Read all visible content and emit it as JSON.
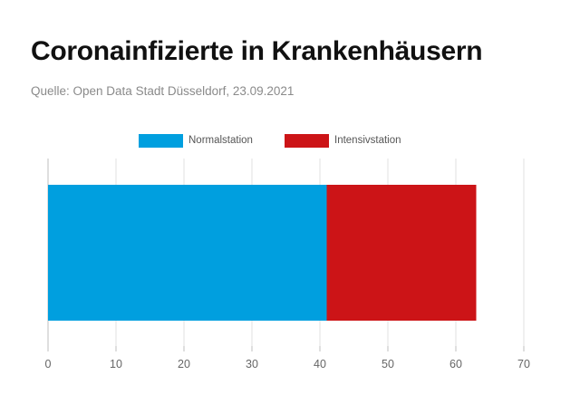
{
  "header": {
    "title": "Coronainfizierte in Krankenhäusern",
    "source": "Quelle: Open Data Stadt Düsseldorf, 23.09.2021"
  },
  "colors": {
    "normalstation": "#009fdf",
    "intensivstation": "#cc1417",
    "grid": "#e0e0e0",
    "axis": "#bfbfbf"
  },
  "chart_data": {
    "type": "bar",
    "orientation": "horizontal",
    "stacked": true,
    "categories": [
      ""
    ],
    "series": [
      {
        "name": "Normalstation",
        "values": [
          41
        ]
      },
      {
        "name": "Intensivstation",
        "values": [
          22
        ]
      }
    ],
    "xlim": [
      0,
      70
    ],
    "xticks": [
      0,
      10,
      20,
      30,
      40,
      50,
      60,
      70
    ],
    "grid": true,
    "legend": "top-center"
  }
}
